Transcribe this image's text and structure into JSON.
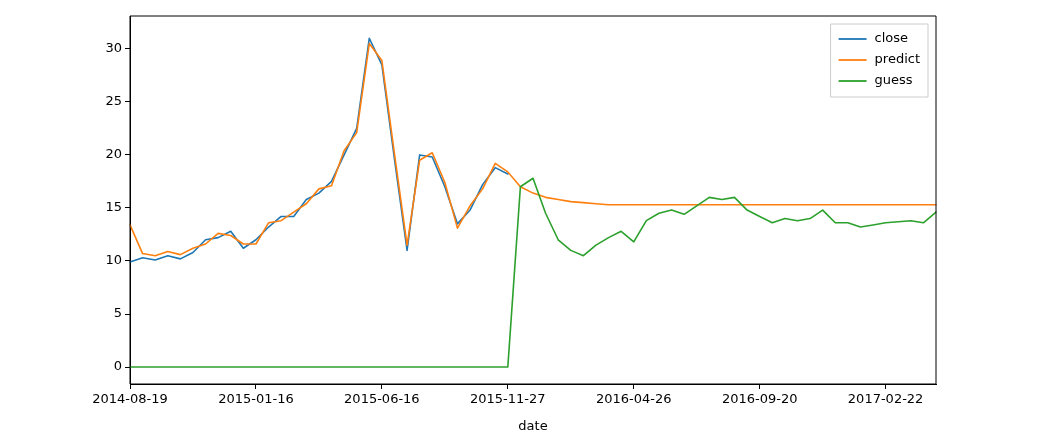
{
  "chart_data": {
    "type": "line",
    "xlabel": "date",
    "categories": [
      "2014-08-19",
      null,
      null,
      null,
      null,
      null,
      null,
      null,
      null,
      null,
      "2015-01-16",
      null,
      null,
      null,
      null,
      null,
      null,
      null,
      null,
      null,
      "2015-06-16",
      null,
      null,
      null,
      null,
      null,
      null,
      null,
      null,
      null,
      "2015-11-27",
      null,
      null,
      null,
      null,
      null,
      null,
      null,
      null,
      null,
      "2016-04-26",
      null,
      null,
      null,
      null,
      null,
      null,
      null,
      null,
      null,
      "2016-09-20",
      null,
      null,
      null,
      null,
      null,
      null,
      null,
      null,
      null,
      "2017-02-22",
      null,
      null,
      null,
      null
    ],
    "series": [
      {
        "name": "close",
        "color": "#1f77b4",
        "values": [
          9.9,
          10.3,
          10.1,
          10.5,
          10.2,
          10.8,
          12.0,
          12.2,
          12.8,
          11.2,
          12.0,
          13.2,
          14.2,
          14.2,
          15.8,
          16.4,
          17.5,
          20.0,
          22.5,
          31.0,
          28.5,
          19.6,
          11.0,
          20.0,
          19.8,
          17.0,
          13.5,
          14.8,
          17.2,
          18.8,
          18.2,
          null,
          null,
          null,
          null,
          null,
          null,
          null,
          null,
          null,
          null,
          null,
          null,
          null,
          null,
          null,
          null,
          null,
          null,
          null,
          null,
          null,
          null,
          null,
          null,
          null,
          null,
          null,
          null,
          null,
          null,
          null,
          null,
          null,
          null
        ]
      },
      {
        "name": "predict",
        "color": "#ff7f0e",
        "values": [
          13.4,
          10.7,
          10.5,
          10.9,
          10.6,
          11.2,
          11.6,
          12.6,
          12.4,
          11.6,
          11.6,
          13.6,
          13.8,
          14.6,
          15.4,
          16.8,
          17.1,
          20.4,
          22.1,
          30.5,
          28.9,
          20.1,
          11.5,
          19.5,
          20.2,
          17.4,
          13.1,
          15.2,
          16.8,
          19.2,
          18.4,
          17.0,
          16.4,
          16.0,
          15.8,
          15.6,
          15.5,
          15.4,
          15.3,
          15.3,
          15.3,
          15.3,
          15.3,
          15.3,
          15.3,
          15.3,
          15.3,
          15.3,
          15.3,
          15.3,
          15.3,
          15.3,
          15.3,
          15.3,
          15.3,
          15.3,
          15.3,
          15.3,
          15.3,
          15.3,
          15.3,
          15.3,
          15.3,
          15.3,
          15.3
        ]
      },
      {
        "name": "guess",
        "color": "#2ca02c",
        "values": [
          0,
          0,
          0,
          0,
          0,
          0,
          0,
          0,
          0,
          0,
          0,
          0,
          0,
          0,
          0,
          0,
          0,
          0,
          0,
          0,
          0,
          0,
          0,
          0,
          0,
          0,
          0,
          0,
          0,
          0,
          0,
          17.0,
          17.8,
          14.5,
          12.0,
          11.0,
          10.5,
          11.5,
          12.2,
          12.8,
          11.8,
          13.8,
          14.5,
          14.8,
          14.4,
          15.2,
          16.0,
          15.8,
          16.0,
          14.8,
          14.2,
          13.6,
          14.0,
          13.8,
          14.0,
          14.8,
          13.6,
          13.6,
          13.2,
          13.4,
          13.6,
          13.7,
          13.8,
          13.6,
          14.6
        ]
      }
    ],
    "ylim": [
      -1.6,
      33.1
    ],
    "yticks": [
      0,
      5,
      10,
      15,
      20,
      25,
      30
    ],
    "legend": "top right",
    "marker": "none",
    "line_style": "solid"
  }
}
